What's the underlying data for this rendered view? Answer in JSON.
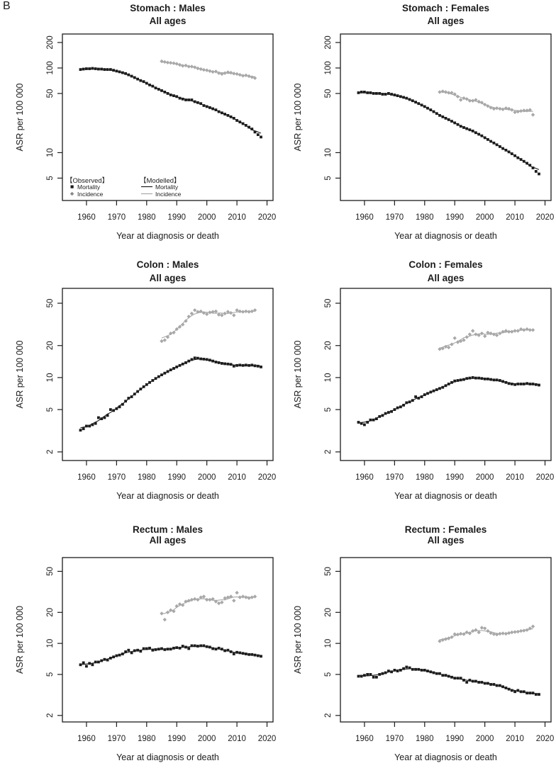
{
  "panel_label": "B",
  "colors": {
    "black": "#1c1c1c",
    "gray": "#a8a8a8",
    "background": "#ffffff"
  },
  "legend": {
    "observed_title": "【Observed】",
    "modelled_title": "【Modelled】",
    "mortality_label": "Mortality",
    "incidence_label": "Incidence"
  },
  "chart_data": [
    {
      "id": "stomach-males",
      "type": "scatter",
      "title": "Stomach : Males",
      "subtitle": "All ages",
      "xlabel": "Year at diagnosis or death",
      "ylabel": "ASR per 100 000",
      "x_scale": "linear",
      "y_scale": "log",
      "grid": false,
      "xlim": [
        1952,
        2022
      ],
      "x_ticks": [
        1960,
        1970,
        1980,
        1990,
        2000,
        2010,
        2020
      ],
      "ylim": [
        2.72,
        252
      ],
      "y_ticks": [
        5,
        10,
        50,
        100,
        200
      ],
      "legend_visible": true,
      "series": [
        {
          "name": "Mortality (observed)",
          "marker": "square",
          "color_key": "black",
          "x_start": 1958,
          "x_step": 1,
          "values": [
            96,
            97,
            98,
            98,
            99,
            98,
            97,
            97,
            96,
            96,
            96,
            94,
            92,
            90,
            88,
            86,
            83,
            80,
            77,
            74,
            71,
            69,
            66,
            63,
            61,
            58,
            56,
            54,
            52,
            50,
            48,
            47,
            46,
            44,
            43,
            42,
            42,
            42,
            40,
            39,
            38,
            36,
            35,
            34,
            33,
            32,
            30.5,
            29.5,
            28.5,
            27.5,
            26.5,
            25.5,
            24,
            23,
            22,
            21,
            20,
            19,
            17.5,
            16.3,
            15.3
          ]
        },
        {
          "name": "Incidence (observed)",
          "marker": "diamond",
          "color_key": "gray",
          "x_start": 1985,
          "x_step": 1,
          "values": [
            120,
            118,
            116,
            115,
            114,
            112,
            109,
            106,
            107,
            104,
            104,
            102,
            99,
            97,
            95,
            94,
            92,
            90,
            91,
            87,
            85,
            87,
            89,
            88,
            86,
            85,
            83,
            81,
            82,
            80,
            78,
            76
          ]
        }
      ],
      "modelled": [
        {
          "name": "Mortality (modelled)",
          "source": 0,
          "color_key": "black"
        },
        {
          "name": "Incidence (modelled)",
          "source": 1,
          "color_key": "gray"
        }
      ]
    },
    {
      "id": "stomach-females",
      "type": "scatter",
      "title": "Stomach : Females",
      "subtitle": "All ages",
      "xlabel": "Year at diagnosis or death",
      "ylabel": "ASR per 100 000",
      "x_scale": "linear",
      "y_scale": "log",
      "grid": false,
      "xlim": [
        1952,
        2022
      ],
      "x_ticks": [
        1960,
        1970,
        1980,
        1990,
        2000,
        2010,
        2020
      ],
      "ylim": [
        2.72,
        252
      ],
      "y_ticks": [
        5,
        10,
        50,
        100,
        200
      ],
      "legend_visible": false,
      "series": [
        {
          "name": "Mortality (observed)",
          "marker": "square",
          "color_key": "black",
          "x_start": 1958,
          "x_step": 1,
          "values": [
            51,
            52,
            52,
            51,
            51,
            50,
            50,
            50,
            49,
            49,
            50,
            49,
            48,
            47,
            46,
            45,
            44,
            42.5,
            41,
            39.5,
            38,
            36.5,
            35,
            33.5,
            32,
            30.5,
            29,
            27.5,
            26.5,
            25.5,
            24.5,
            23.5,
            22.5,
            21.5,
            20.5,
            19.8,
            19.2,
            18.6,
            18,
            17.2,
            16.5,
            15.8,
            15,
            14.3,
            13.6,
            13,
            12.4,
            11.8,
            11.2,
            10.7,
            10.2,
            9.7,
            9.2,
            8.7,
            8.3,
            7.9,
            7.5,
            7.1,
            6.6,
            6,
            5.6
          ]
        },
        {
          "name": "Incidence (observed)",
          "marker": "diamond",
          "color_key": "gray",
          "x_start": 1985,
          "x_step": 1,
          "values": [
            52,
            53,
            52,
            51,
            51,
            49,
            46,
            42,
            44,
            43,
            41,
            41,
            42,
            40,
            39,
            37,
            35.5,
            34,
            33,
            33.5,
            33,
            32.5,
            33.5,
            33,
            32,
            30,
            30.5,
            31,
            31.5,
            31.5,
            32,
            28
          ]
        }
      ],
      "modelled": [
        {
          "name": "Mortality (modelled)",
          "source": 0,
          "color_key": "black"
        },
        {
          "name": "Incidence (modelled)",
          "source": 1,
          "color_key": "gray"
        }
      ]
    },
    {
      "id": "colon-males",
      "type": "scatter",
      "title": "Colon : Males",
      "subtitle": "All ages",
      "xlabel": "Year at diagnosis or death",
      "ylabel": "ASR per 100 000",
      "x_scale": "linear",
      "y_scale": "log",
      "grid": false,
      "xlim": [
        1952,
        2022
      ],
      "x_ticks": [
        1960,
        1970,
        1980,
        1990,
        2000,
        2010,
        2020
      ],
      "ylim": [
        1.66,
        69
      ],
      "y_ticks": [
        2,
        5,
        10,
        20,
        50
      ],
      "legend_visible": false,
      "series": [
        {
          "name": "Mortality (observed)",
          "marker": "square",
          "color_key": "black",
          "x_start": 1958,
          "x_step": 1,
          "values": [
            3.2,
            3.3,
            3.5,
            3.5,
            3.6,
            3.7,
            4.2,
            4.1,
            4.2,
            4.4,
            5,
            4.9,
            5.1,
            5.3,
            5.6,
            6,
            6.4,
            6.6,
            7,
            7.4,
            7.8,
            8.2,
            8.6,
            9,
            9.4,
            9.8,
            10.2,
            10.6,
            11,
            11.4,
            11.8,
            12.2,
            12.6,
            13,
            13.4,
            13.8,
            14.3,
            14.8,
            15.3,
            15.2,
            15,
            14.9,
            14.8,
            14.6,
            14.3,
            14,
            13.8,
            13.6,
            13.5,
            13.4,
            13.3,
            12.8,
            13,
            13.1,
            13,
            13.1,
            13,
            13.1,
            12.9,
            12.8,
            12.6
          ]
        },
        {
          "name": "Incidence (observed)",
          "marker": "diamond",
          "color_key": "gray",
          "x_start": 1985,
          "x_step": 1,
          "values": [
            22,
            22.5,
            24,
            26,
            26.5,
            28.5,
            30,
            31.5,
            34,
            37.5,
            40,
            43,
            41.5,
            42,
            40.5,
            39.5,
            41,
            41.5,
            42,
            39,
            38.5,
            40,
            41.5,
            40.5,
            38.5,
            43,
            42,
            41.5,
            42,
            41.5,
            42,
            43
          ]
        }
      ],
      "modelled": [
        {
          "name": "Mortality (modelled)",
          "source": 0,
          "color_key": "black"
        },
        {
          "name": "Incidence (modelled)",
          "source": 1,
          "color_key": "gray"
        }
      ]
    },
    {
      "id": "colon-females",
      "type": "scatter",
      "title": "Colon : Females",
      "subtitle": "All ages",
      "xlabel": "Year at diagnosis or death",
      "ylabel": "ASR per 100 000",
      "x_scale": "linear",
      "y_scale": "log",
      "grid": false,
      "xlim": [
        1952,
        2022
      ],
      "x_ticks": [
        1960,
        1970,
        1980,
        1990,
        2000,
        2010,
        2020
      ],
      "ylim": [
        1.66,
        69
      ],
      "y_ticks": [
        2,
        5,
        10,
        20,
        50
      ],
      "legend_visible": false,
      "series": [
        {
          "name": "Mortality (observed)",
          "marker": "square",
          "color_key": "black",
          "x_start": 1958,
          "x_step": 1,
          "values": [
            3.8,
            3.7,
            3.6,
            3.8,
            4,
            4,
            4.1,
            4.3,
            4.4,
            4.6,
            4.7,
            4.8,
            5,
            5.2,
            5.3,
            5.5,
            5.8,
            5.9,
            6.1,
            6.6,
            6.4,
            6.6,
            6.9,
            7.1,
            7.3,
            7.5,
            7.7,
            7.9,
            8.1,
            8.4,
            8.7,
            9,
            9.3,
            9.4,
            9.5,
            9.6,
            9.8,
            9.9,
            10,
            9.9,
            9.9,
            9.8,
            9.7,
            9.7,
            9.6,
            9.5,
            9.5,
            9.4,
            9.2,
            9,
            8.8,
            8.7,
            8.6,
            8.7,
            8.7,
            8.7,
            8.8,
            8.7,
            8.7,
            8.6,
            8.5
          ]
        },
        {
          "name": "Incidence (observed)",
          "marker": "diamond",
          "color_key": "gray",
          "x_start": 1985,
          "x_step": 1,
          "values": [
            18.5,
            18.8,
            19.5,
            19.2,
            20.5,
            23.5,
            21.5,
            22,
            22.5,
            24,
            25.5,
            27.5,
            25.5,
            25,
            26,
            24.5,
            26.5,
            26,
            25.5,
            25,
            26,
            27,
            27.5,
            27,
            27,
            27.5,
            27.5,
            28.5,
            28,
            28.5,
            28,
            28
          ]
        }
      ],
      "modelled": [
        {
          "name": "Mortality (modelled)",
          "source": 0,
          "color_key": "black"
        },
        {
          "name": "Incidence (modelled)",
          "source": 1,
          "color_key": "gray"
        }
      ]
    },
    {
      "id": "rectum-males",
      "type": "scatter",
      "title": "Rectum : Males",
      "subtitle": "All ages",
      "xlabel": "Year at diagnosis or death",
      "ylabel": "ASR per 100 000",
      "x_scale": "linear",
      "y_scale": "log",
      "grid": false,
      "xlim": [
        1952,
        2022
      ],
      "x_ticks": [
        1960,
        1970,
        1980,
        1990,
        2000,
        2010,
        2020
      ],
      "ylim": [
        1.73,
        68
      ],
      "y_ticks": [
        2,
        5,
        10,
        20,
        50
      ],
      "legend_visible": false,
      "series": [
        {
          "name": "Mortality (observed)",
          "marker": "square",
          "color_key": "black",
          "x_start": 1958,
          "x_step": 1,
          "values": [
            6.2,
            6.5,
            6,
            6.4,
            6.2,
            6.6,
            6.6,
            6.8,
            7,
            6.9,
            7.2,
            7.4,
            7.6,
            7.7,
            7.9,
            8.3,
            8.6,
            8.1,
            8.5,
            8.6,
            8.4,
            8.9,
            8.9,
            9,
            8.6,
            8.7,
            8.8,
            8.9,
            8.7,
            8.8,
            8.8,
            9,
            9.1,
            9,
            9.4,
            9.2,
            8.9,
            9.5,
            9.5,
            9.4,
            9.5,
            9.5,
            9.3,
            9.2,
            8.9,
            8.8,
            9,
            8.8,
            8.5,
            8.6,
            8.3,
            7.9,
            8.2,
            8.1,
            8,
            7.9,
            7.8,
            7.8,
            7.7,
            7.6,
            7.5
          ]
        },
        {
          "name": "Incidence (observed)",
          "marker": "diamond",
          "color_key": "gray",
          "x_start": 1985,
          "x_step": 1,
          "values": [
            19.5,
            17,
            20,
            21,
            20.5,
            23,
            24,
            23.5,
            25.5,
            26,
            26.5,
            27,
            26.5,
            28,
            28.5,
            26.5,
            26.5,
            27,
            25.5,
            24.5,
            25,
            27.5,
            28,
            28.5,
            26,
            31,
            28,
            28.5,
            28,
            27.5,
            28,
            28.5
          ]
        }
      ],
      "modelled": [
        {
          "name": "Mortality (modelled)",
          "source": 0,
          "color_key": "black"
        },
        {
          "name": "Incidence (modelled)",
          "source": 1,
          "color_key": "gray"
        }
      ]
    },
    {
      "id": "rectum-females",
      "type": "scatter",
      "title": "Rectum : Females",
      "subtitle": "All ages",
      "xlabel": "Year at diagnosis or death",
      "ylabel": "ASR per 100 000",
      "x_scale": "linear",
      "y_scale": "log",
      "grid": false,
      "xlim": [
        1952,
        2022
      ],
      "x_ticks": [
        1960,
        1970,
        1980,
        1990,
        2000,
        2010,
        2020
      ],
      "ylim": [
        1.73,
        68
      ],
      "y_ticks": [
        2,
        5,
        10,
        20,
        50
      ],
      "legend_visible": false,
      "series": [
        {
          "name": "Mortality (observed)",
          "marker": "square",
          "color_key": "black",
          "x_start": 1958,
          "x_step": 1,
          "values": [
            4.8,
            4.8,
            4.9,
            5,
            5,
            4.7,
            4.7,
            5,
            5.1,
            5.2,
            5.4,
            5.3,
            5.5,
            5.4,
            5.5,
            5.7,
            5.9,
            5.8,
            5.6,
            5.6,
            5.6,
            5.5,
            5.5,
            5.4,
            5.3,
            5.2,
            5.1,
            5.1,
            4.9,
            4.9,
            4.8,
            4.7,
            4.6,
            4.6,
            4.6,
            4.4,
            4.2,
            4.4,
            4.3,
            4.3,
            4.2,
            4.2,
            4.1,
            4.1,
            4,
            4,
            3.9,
            3.9,
            3.8,
            3.7,
            3.6,
            3.5,
            3.4,
            3.5,
            3.4,
            3.4,
            3.3,
            3.3,
            3.3,
            3.2,
            3.2
          ]
        },
        {
          "name": "Incidence (observed)",
          "marker": "diamond",
          "color_key": "gray",
          "x_start": 1985,
          "x_step": 1,
          "values": [
            10.5,
            10.8,
            11,
            11.2,
            11.5,
            12.3,
            12.2,
            12.4,
            12.3,
            12.8,
            12.5,
            13.2,
            13.5,
            12.8,
            14.2,
            14,
            13.2,
            12.6,
            12.3,
            12.2,
            12.4,
            12.5,
            12.4,
            12.6,
            12.8,
            12.9,
            13,
            13.2,
            13.3,
            13.5,
            14,
            14.6
          ]
        }
      ],
      "modelled": [
        {
          "name": "Mortality (modelled)",
          "source": 0,
          "color_key": "black"
        },
        {
          "name": "Incidence (modelled)",
          "source": 1,
          "color_key": "gray"
        }
      ]
    }
  ]
}
